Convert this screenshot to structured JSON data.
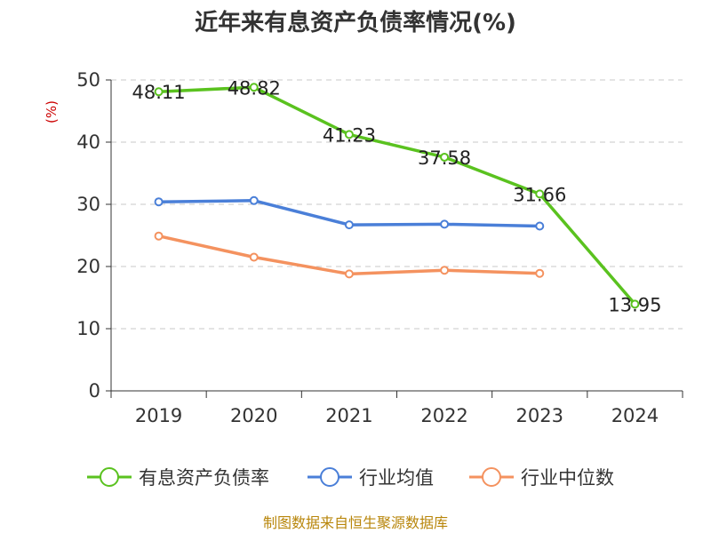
{
  "chart_data": {
    "type": "line",
    "title": "近年来有息资产负债率情况(%)",
    "ylabel": "(%)",
    "xlabel": "",
    "categories": [
      "2019",
      "2020",
      "2021",
      "2022",
      "2023",
      "2024"
    ],
    "ylim": [
      0,
      50
    ],
    "yticks": [
      0,
      10,
      20,
      30,
      40,
      50
    ],
    "grid": true,
    "legend_position": "bottom",
    "series": [
      {
        "name": "有息资产负债率",
        "color": "#5ac21f",
        "show_labels": true,
        "values": [
          48.11,
          48.82,
          41.23,
          37.58,
          31.66,
          13.95
        ],
        "labels": [
          "48.11",
          "48.82",
          "41.23",
          "37.58",
          "31.66",
          "13.95"
        ]
      },
      {
        "name": "行业均值",
        "color": "#4a7fd8",
        "show_labels": false,
        "values": [
          30.4,
          30.6,
          26.7,
          26.8,
          26.5,
          null
        ]
      },
      {
        "name": "行业中位数",
        "color": "#f4925f",
        "show_labels": false,
        "values": [
          24.9,
          21.5,
          18.8,
          19.4,
          18.9,
          null
        ]
      }
    ],
    "source": "制图数据来自恒生聚源数据库"
  }
}
